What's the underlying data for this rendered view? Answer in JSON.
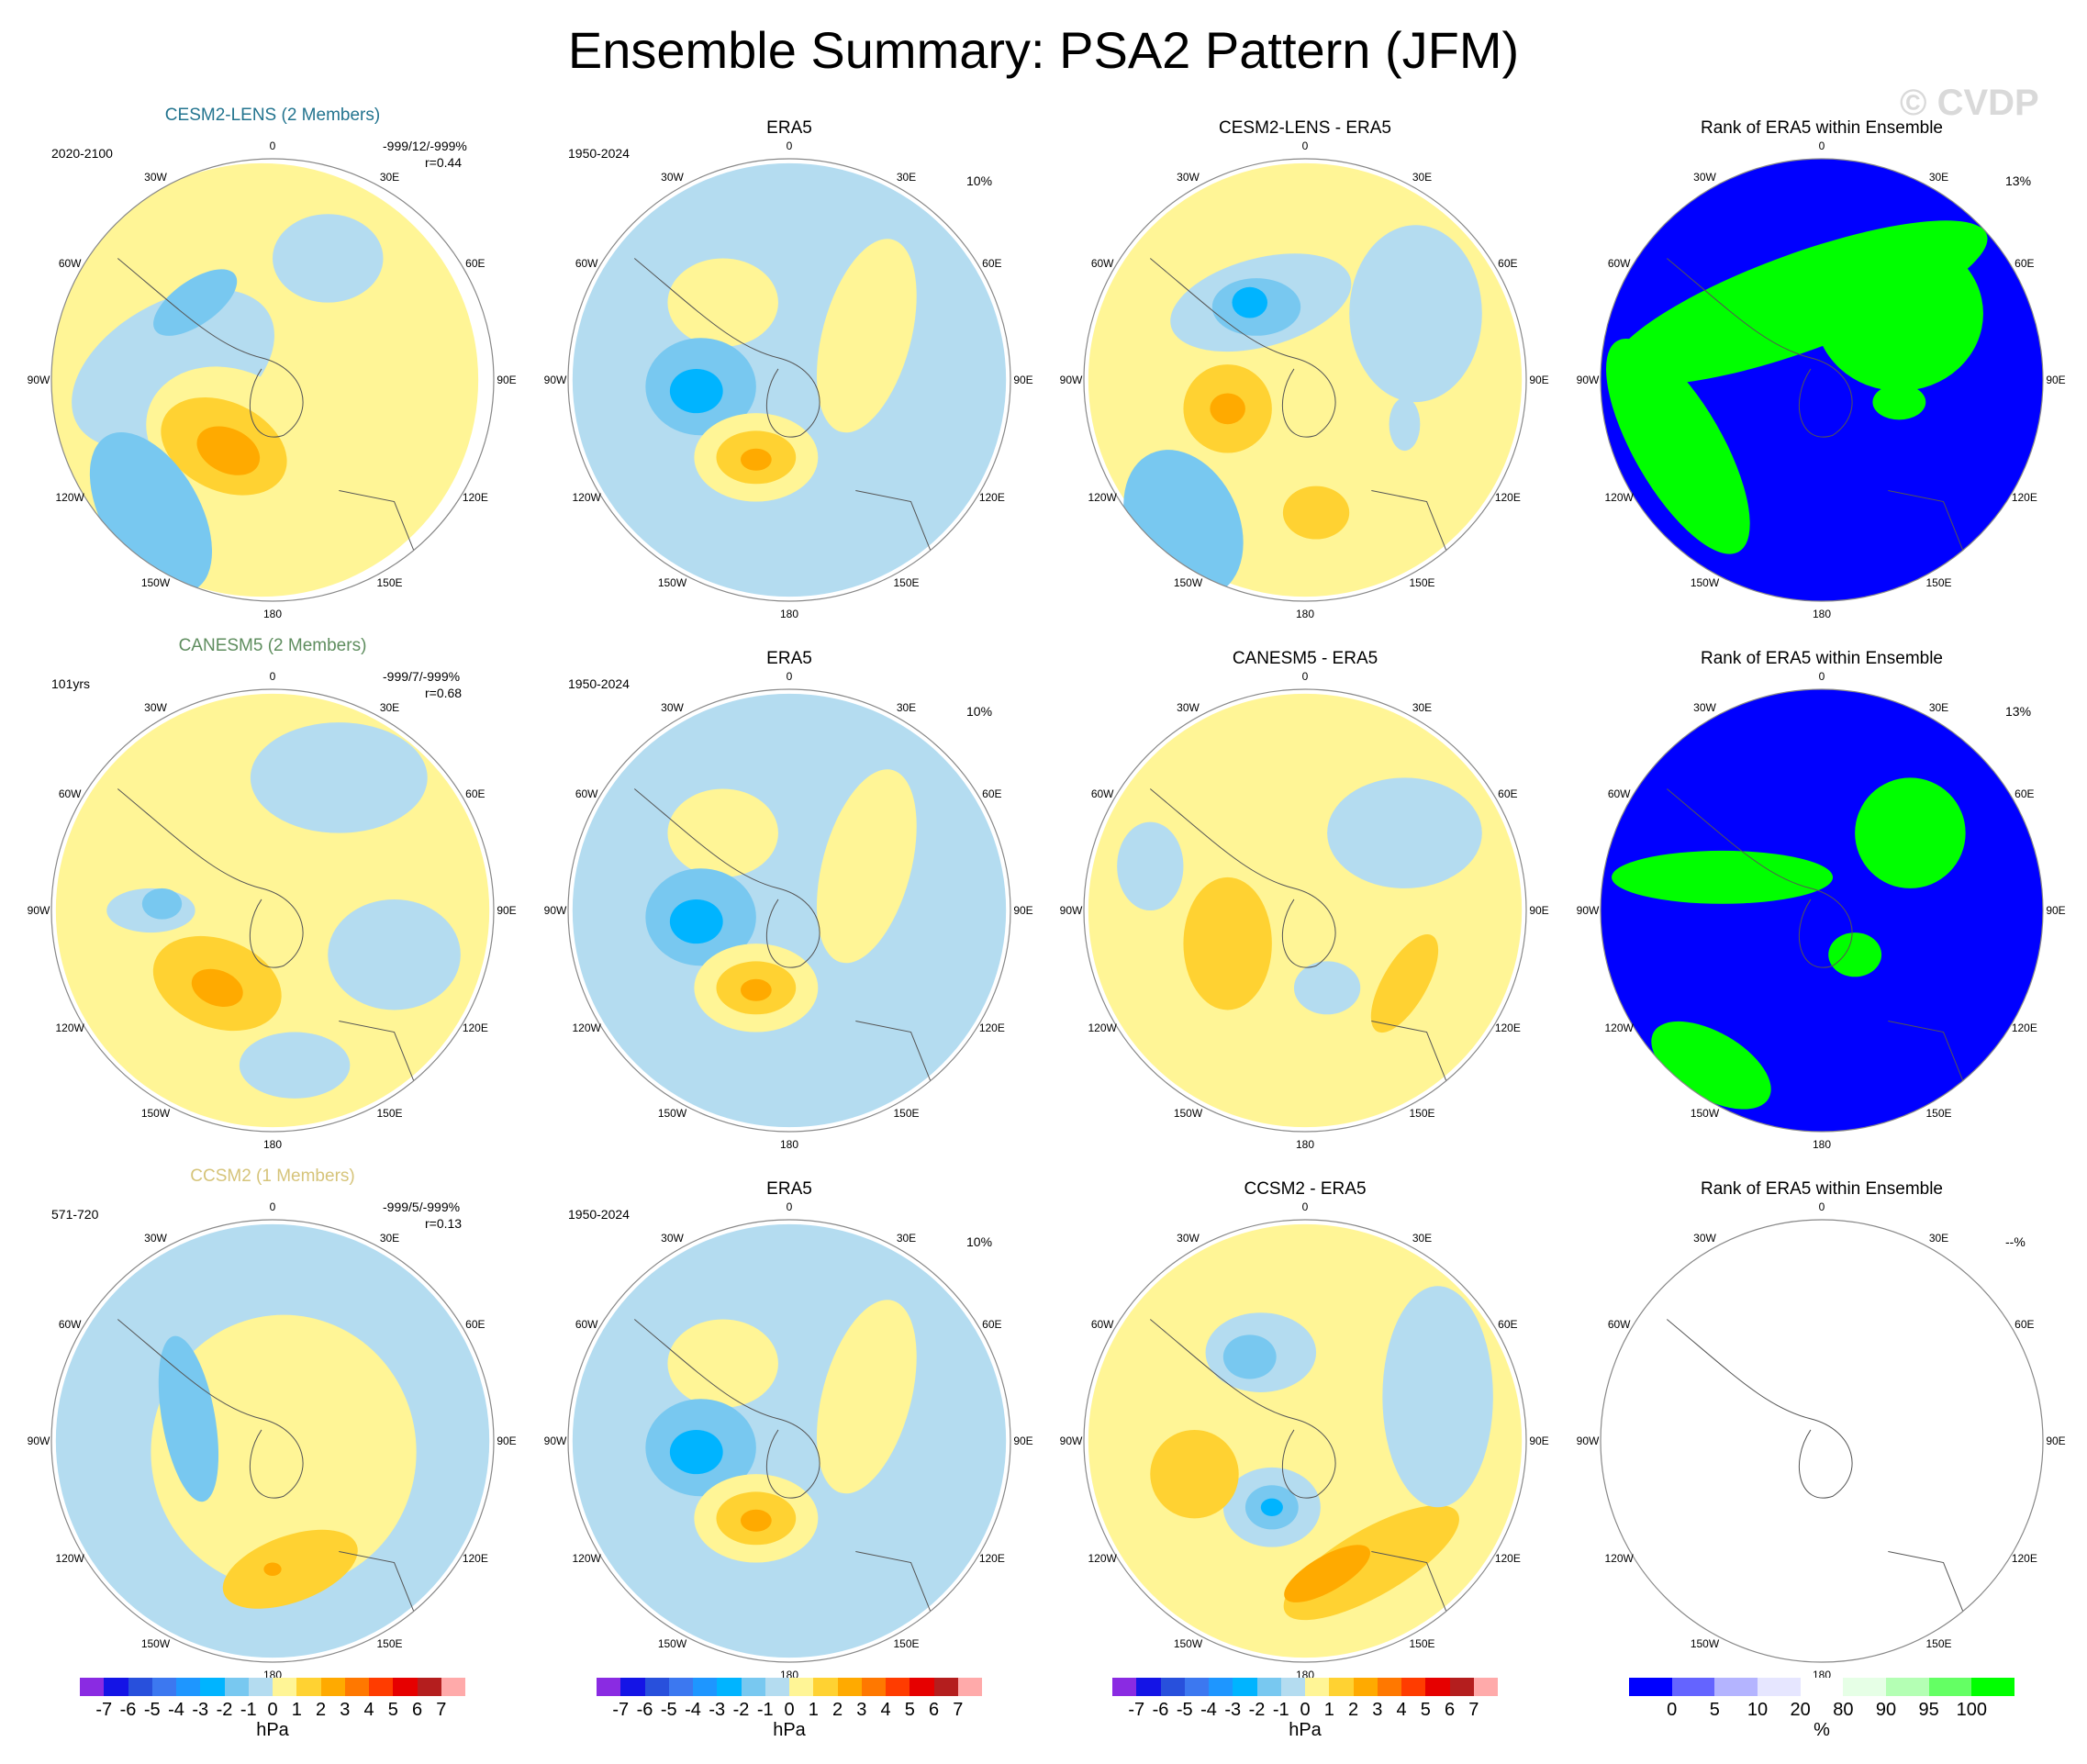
{
  "figure_title": "Ensemble Summary: PSA2 Pattern (JFM)",
  "watermark": "© CVDP",
  "chart_data": {
    "type": "heatmap",
    "units": "hPa",
    "rank_units": "%",
    "rows": [
      {
        "model": "CESM2-LENS (2 Members)",
        "model_color": "#23748f",
        "period": "2020-2100",
        "stats": "-999/12/-999%",
        "corr": "r=0.44",
        "era_period": "1950-2024",
        "era_pct": "10%",
        "diff_title": "CESM2-LENS - ERA5",
        "rank_pct": "13%"
      },
      {
        "model": "CANESM5 (2 Members)",
        "model_color": "#5e8d5e",
        "period": "101yrs",
        "stats": "-999/7/-999%",
        "corr": "r=0.68",
        "era_period": "1950-2024",
        "era_pct": "10%",
        "diff_title": "CANESM5 - ERA5",
        "rank_pct": "13%"
      },
      {
        "model": "CCSM2 (1 Members)",
        "model_color": "#d6c47a",
        "period": "571-720",
        "stats": "-999/5/-999%",
        "corr": "r=0.13",
        "era_period": "1950-2024",
        "era_pct": "10%",
        "diff_title": "CCSM2 - ERA5",
        "rank_pct": "--%"
      }
    ],
    "era_title": "ERA5",
    "rank_title": "Rank of ERA5 within Ensemble",
    "lon_labels": [
      "0",
      "30E",
      "60E",
      "90E",
      "120E",
      "150E",
      "180",
      "150W",
      "120W",
      "90W",
      "60W",
      "30W"
    ],
    "anomaly_colorbar": {
      "ticks": [
        "-7",
        "-6",
        "-5",
        "-4",
        "-3",
        "-2",
        "-1",
        "0",
        "1",
        "2",
        "3",
        "4",
        "5",
        "6",
        "7"
      ],
      "colors": [
        "#8a2be2",
        "#1414e6",
        "#2850dc",
        "#3c78f0",
        "#1e96ff",
        "#00b4ff",
        "#78c8f0",
        "#b4dcf0",
        "#fff596",
        "#ffd232",
        "#ffaa00",
        "#ff7800",
        "#ff3c00",
        "#e60000",
        "#b41e1e",
        "#ffaaaa"
      ],
      "unit_label": "hPa"
    },
    "rank_colorbar": {
      "ticks": [
        "0",
        "5",
        "10",
        "20",
        "80",
        "90",
        "95",
        "100"
      ],
      "colors": [
        "#0000ff",
        "#6464ff",
        "#b4b4ff",
        "#e6e6ff",
        "#ffffff",
        "#e6ffe6",
        "#b4ffb4",
        "#64ff64",
        "#00ff00"
      ],
      "unit_label": "%"
    },
    "blob_meaning": "anomaly level blobs: [col, row, cx_offset, cy_offset, rx, ry, rot, level] in hPa"
  }
}
